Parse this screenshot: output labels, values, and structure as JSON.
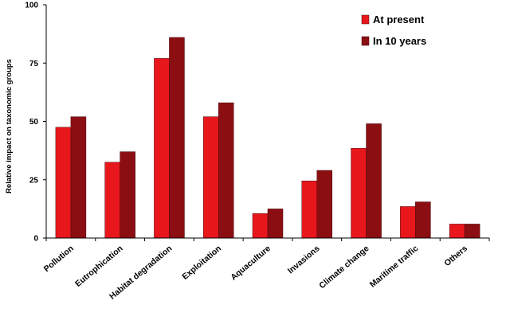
{
  "chart_data": {
    "type": "bar",
    "title": "",
    "xlabel": "",
    "ylabel": "Relative impact on taxonomic groups",
    "ylim": [
      0,
      100
    ],
    "yticks": [
      0,
      25,
      50,
      75,
      100
    ],
    "categories": [
      "Pollution",
      "Eutrophication",
      "Habitat degradation",
      "Exploitation",
      "Aquaculture",
      "Invasions",
      "Climate change",
      "Maritime traffic",
      "Others"
    ],
    "series": [
      {
        "name": "At present",
        "color": "#e8171c",
        "values": [
          47.5,
          32.5,
          77,
          52,
          10.5,
          24.5,
          38.5,
          13.5,
          6
        ]
      },
      {
        "name": "In 10 years",
        "color": "#8b0e13",
        "values": [
          52,
          37,
          86,
          58,
          12.5,
          29,
          49,
          15.5,
          6
        ]
      }
    ],
    "grid": false,
    "legend_position": "top-right"
  }
}
